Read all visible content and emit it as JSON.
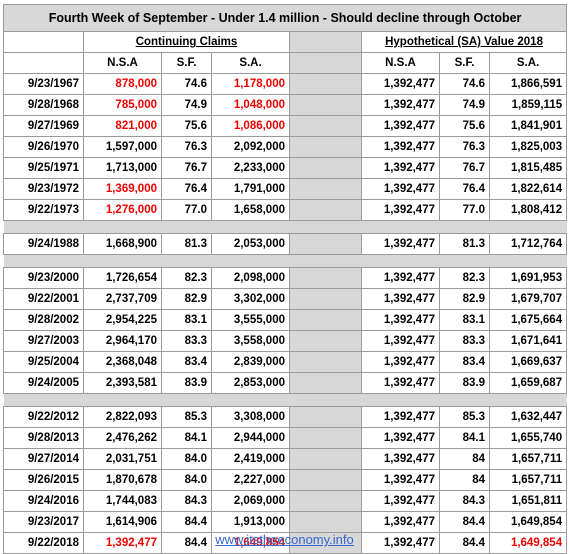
{
  "title": "Fourth Week of September - Under 1.4 million - Should decline through October",
  "groups": {
    "left": "Continuing Claims",
    "right": "Hypothetical (SA) Value 2018"
  },
  "columns": {
    "nsa": "N.S.A",
    "sf": "S.F.",
    "sa": "S.A.",
    "nsa2": "N.S.A",
    "sf2": "S.F.",
    "sa2": "S.A."
  },
  "rows": [
    {
      "date": "9/23/1967",
      "nsa": "878,000",
      "sf": "74.6",
      "sa": "1,178,000",
      "nsa2": "1,392,477",
      "sf2": "74.6",
      "sa2": "1,866,591"
    },
    {
      "date": "9/28/1968",
      "nsa": "785,000",
      "sf": "74.9",
      "sa": "1,048,000",
      "nsa2": "1,392,477",
      "sf2": "74.9",
      "sa2": "1,859,115"
    },
    {
      "date": "9/27/1969",
      "nsa": "821,000",
      "sf": "75.6",
      "sa": "1,086,000",
      "nsa2": "1,392,477",
      "sf2": "75.6",
      "sa2": "1,841,901"
    },
    {
      "date": "9/26/1970",
      "nsa": "1,597,000",
      "sf": "76.3",
      "sa": "2,092,000",
      "nsa2": "1,392,477",
      "sf2": "76.3",
      "sa2": "1,825,003"
    },
    {
      "date": "9/25/1971",
      "nsa": "1,713,000",
      "sf": "76.7",
      "sa": "2,233,000",
      "nsa2": "1,392,477",
      "sf2": "76.7",
      "sa2": "1,815,485"
    },
    {
      "date": "9/23/1972",
      "nsa": "1,369,000",
      "sf": "76.4",
      "sa": "1,791,000",
      "nsa2": "1,392,477",
      "sf2": "76.4",
      "sa2": "1,822,614"
    },
    {
      "date": "9/22/1973",
      "nsa": "1,276,000",
      "sf": "77.0",
      "sa": "1,658,000",
      "nsa2": "1,392,477",
      "sf2": "77.0",
      "sa2": "1,808,412"
    },
    {
      "date": "9/24/1988",
      "nsa": "1,668,900",
      "sf": "81.3",
      "sa": "2,053,000",
      "nsa2": "1,392,477",
      "sf2": "81.3",
      "sa2": "1,712,764"
    },
    {
      "date": "9/23/2000",
      "nsa": "1,726,654",
      "sf": "82.3",
      "sa": "2,098,000",
      "nsa2": "1,392,477",
      "sf2": "82.3",
      "sa2": "1,691,953"
    },
    {
      "date": "9/22/2001",
      "nsa": "2,737,709",
      "sf": "82.9",
      "sa": "3,302,000",
      "nsa2": "1,392,477",
      "sf2": "82.9",
      "sa2": "1,679,707"
    },
    {
      "date": "9/28/2002",
      "nsa": "2,954,225",
      "sf": "83.1",
      "sa": "3,555,000",
      "nsa2": "1,392,477",
      "sf2": "83.1",
      "sa2": "1,675,664"
    },
    {
      "date": "9/27/2003",
      "nsa": "2,964,170",
      "sf": "83.3",
      "sa": "3,558,000",
      "nsa2": "1,392,477",
      "sf2": "83.3",
      "sa2": "1,671,641"
    },
    {
      "date": "9/25/2004",
      "nsa": "2,368,048",
      "sf": "83.4",
      "sa": "2,839,000",
      "nsa2": "1,392,477",
      "sf2": "83.4",
      "sa2": "1,669,637"
    },
    {
      "date": "9/24/2005",
      "nsa": "2,393,581",
      "sf": "83.9",
      "sa": "2,853,000",
      "nsa2": "1,392,477",
      "sf2": "83.9",
      "sa2": "1,659,687"
    },
    {
      "date": "9/22/2012",
      "nsa": "2,822,093",
      "sf": "85.3",
      "sa": "3,308,000",
      "nsa2": "1,392,477",
      "sf2": "85.3",
      "sa2": "1,632,447"
    },
    {
      "date": "9/28/2013",
      "nsa": "2,476,262",
      "sf": "84.1",
      "sa": "2,944,000",
      "nsa2": "1,392,477",
      "sf2": "84.1",
      "sa2": "1,655,740"
    },
    {
      "date": "9/27/2014",
      "nsa": "2,031,751",
      "sf": "84.0",
      "sa": "2,419,000",
      "nsa2": "1,392,477",
      "sf2": "84",
      "sa2": "1,657,711"
    },
    {
      "date": "9/26/2015",
      "nsa": "1,870,678",
      "sf": "84.0",
      "sa": "2,227,000",
      "nsa2": "1,392,477",
      "sf2": "84",
      "sa2": "1,657,711"
    },
    {
      "date": "9/24/2016",
      "nsa": "1,744,083",
      "sf": "84.3",
      "sa": "2,069,000",
      "nsa2": "1,392,477",
      "sf2": "84.3",
      "sa2": "1,651,811"
    },
    {
      "date": "9/23/2017",
      "nsa": "1,614,906",
      "sf": "84.4",
      "sa": "1,913,000",
      "nsa2": "1,392,477",
      "sf2": "84.4",
      "sa2": "1,649,854"
    },
    {
      "date": "9/22/2018",
      "nsa": "1,392,477",
      "sf": "84.4",
      "sa": "1,649,854",
      "nsa2": "1,392,477",
      "sf2": "84.4",
      "sa2": "1,649,854"
    }
  ],
  "colors": {
    "highlight": "#ee0000",
    "header_bg": "#d8d8d8",
    "link": "#3366cc"
  },
  "footer_link": "www.itstheeconomy.info"
}
